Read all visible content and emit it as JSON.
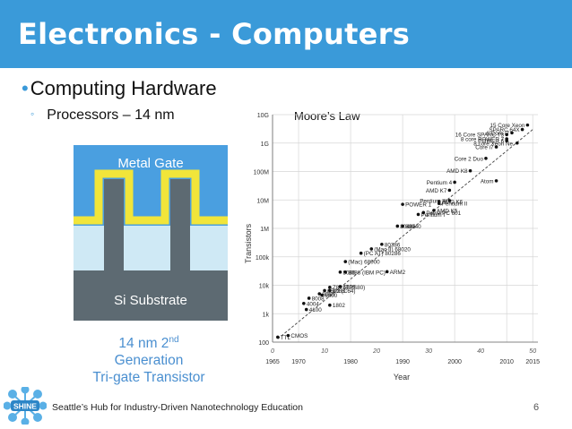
{
  "slide": {
    "title": "Electronics - Computers",
    "bullet1": "Computing Hardware",
    "bullet2": "Processors – 14 nm",
    "footer": "Seattle’s Hub for Industry-Driven Nanotechnology Education",
    "page_number": "6"
  },
  "transistor": {
    "gate_label": "Metal Gate",
    "substrate_label": "Si Substrate",
    "caption_line1_a": "14 nm 2",
    "caption_line1_sup": "nd",
    "caption_line1_b": " Generation",
    "caption_line2": "Tri-gate Transistor"
  },
  "logo": {
    "text": "SHINE"
  },
  "colors": {
    "header": "#3a9ad9",
    "gate": "#f1e53a",
    "fin": "#5d6a72",
    "substrate": "#5d6a72",
    "oxide": "#cfe9f5",
    "caption": "#4a8fd0"
  },
  "chart_data": {
    "type": "scatter",
    "title": "Moore’s Law",
    "xlabel": "Year",
    "ylabel": "Transistors",
    "x_scale": "linear",
    "y_scale": "log",
    "xlim": [
      1965,
      2016
    ],
    "ylim": [
      100,
      10000000000
    ],
    "x_ticks": [
      "1965",
      "1970",
      "1980",
      "1990",
      "2000",
      "2010",
      "2015"
    ],
    "x_secondary_ticks": [
      "0",
      "10",
      "20",
      "30",
      "40",
      "50"
    ],
    "y_ticks": [
      "100",
      "1k",
      "10k",
      "100k",
      "1M",
      "10M",
      "100M",
      "1G",
      "10G"
    ],
    "points": [
      {
        "x": 1966,
        "y": 150,
        "label": "TTL"
      },
      {
        "x": 1968,
        "y": 170,
        "label": "CMOS"
      },
      {
        "x": 1971,
        "y": 2300,
        "label": "4004"
      },
      {
        "x": 1972,
        "y": 3500,
        "label": "8008"
      },
      {
        "x": 1971.5,
        "y": 1400,
        "label": "4100"
      },
      {
        "x": 1976,
        "y": 2000,
        "label": "1802"
      },
      {
        "x": 1974,
        "y": 5000,
        "label": "8080"
      },
      {
        "x": 1975,
        "y": 6500,
        "label": "6502 (C64)"
      },
      {
        "x": 1974.5,
        "y": 4500,
        "label": "6800"
      },
      {
        "x": 1976,
        "y": 8500,
        "label": "Z80 (TRS80)"
      },
      {
        "x": 1976,
        "y": 6500,
        "label": "8085"
      },
      {
        "x": 1978,
        "y": 9000,
        "label": "6809"
      },
      {
        "x": 1978,
        "y": 29000,
        "label": "8086"
      },
      {
        "x": 1979,
        "y": 29000,
        "label": "8088 (IBM PC)"
      },
      {
        "x": 1979,
        "y": 68000,
        "label": "(Mac) 68000"
      },
      {
        "x": 1982,
        "y": 134000,
        "label": "(PC AT) 80286"
      },
      {
        "x": 1984,
        "y": 190000,
        "label": "(Mac II) 68020"
      },
      {
        "x": 1986,
        "y": 275000,
        "label": "80386"
      },
      {
        "x": 1987,
        "y": 30000,
        "label": "ARM2"
      },
      {
        "x": 1989,
        "y": 1200000,
        "label": "80486"
      },
      {
        "x": 1990,
        "y": 1200000,
        "label": "68040"
      },
      {
        "x": 1990,
        "y": 7000000,
        "label": "POWER 1"
      },
      {
        "x": 1993,
        "y": 3100000,
        "label": "Pentium I"
      },
      {
        "x": 1994,
        "y": 3600000,
        "label": "PowerPC 601"
      },
      {
        "x": 1996,
        "y": 4300000,
        "label": "AMD K5"
      },
      {
        "x": 1997,
        "y": 8800000,
        "label": "AMD K6"
      },
      {
        "x": 1997,
        "y": 7500000,
        "label": "Pentium II"
      },
      {
        "x": 1999,
        "y": 9500000,
        "label": "Pentium III"
      },
      {
        "x": 1999,
        "y": 22000000,
        "label": "AMD K7"
      },
      {
        "x": 2000,
        "y": 42000000,
        "label": "Pentium 4"
      },
      {
        "x": 2003,
        "y": 105900000,
        "label": "AMD K8"
      },
      {
        "x": 2008,
        "y": 47000000,
        "label": "Atom"
      },
      {
        "x": 2006,
        "y": 291000000,
        "label": "Core 2 Duo"
      },
      {
        "x": 2008,
        "y": 731000000,
        "label": "Core i7"
      },
      {
        "x": 2010,
        "y": 1200000000,
        "label": "POWER 6"
      },
      {
        "x": 2010,
        "y": 1400000000,
        "label": "8 core POWER 7"
      },
      {
        "x": 2011,
        "y": 2300000000,
        "label": "6 Core i7"
      },
      {
        "x": 2012,
        "y": 1000000000,
        "label": "8 core Xeon Ne."
      },
      {
        "x": 2010,
        "y": 2000000000,
        "label": "16 Core SPARC T3"
      },
      {
        "x": 2013,
        "y": 3000000000,
        "label": "SPARC 64X"
      },
      {
        "x": 2014,
        "y": 4300000000,
        "label": "15 Core Xeon"
      }
    ],
    "trend_line": {
      "x": [
        1966,
        2015
      ],
      "y": [
        130,
        3000000000
      ]
    },
    "grid": true,
    "legend": "none"
  }
}
